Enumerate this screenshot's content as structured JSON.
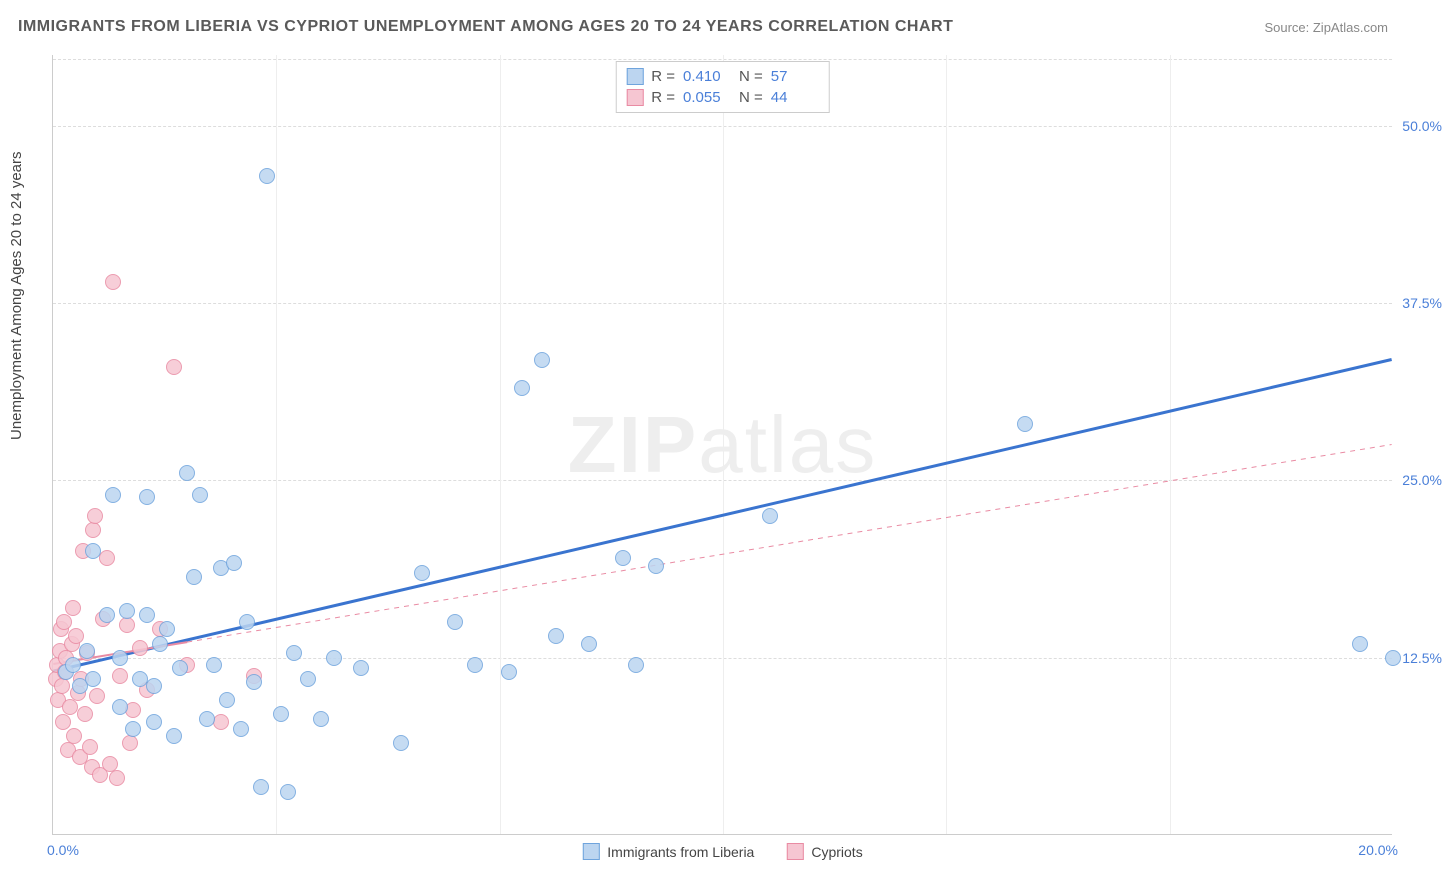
{
  "title": "IMMIGRANTS FROM LIBERIA VS CYPRIOT UNEMPLOYMENT AMONG AGES 20 TO 24 YEARS CORRELATION CHART",
  "source": "Source: ZipAtlas.com",
  "ylabel": "Unemployment Among Ages 20 to 24 years",
  "watermark_a": "ZIP",
  "watermark_b": "atlas",
  "chart": {
    "type": "scatter",
    "xlim": [
      0,
      20
    ],
    "ylim": [
      0,
      55
    ],
    "xtick_labels": [
      "0.0%",
      "20.0%"
    ],
    "ytick_positions": [
      12.5,
      25.0,
      37.5,
      50.0
    ],
    "ytick_labels": [
      "12.5%",
      "25.0%",
      "37.5%",
      "50.0%"
    ],
    "vgrid_positions": [
      3.33,
      6.67,
      10.0,
      13.33,
      16.67
    ],
    "background_color": "#ffffff",
    "grid_color": "#dddddd",
    "point_radius": 8,
    "point_stroke_width": 1,
    "marker_style": "circle",
    "aspect_w": 1340,
    "aspect_h": 780
  },
  "series": [
    {
      "name": "Immigrants from Liberia",
      "fill": "#bcd5f0",
      "stroke": "#6fa4dd",
      "line_color": "#3a74cf",
      "line_width": 3,
      "line_dash": "none",
      "R_label": "R =",
      "R": "0.410",
      "N_label": "N =",
      "N": "57",
      "trend": {
        "x1": 0,
        "y1": 11.5,
        "x2": 20,
        "y2": 33.5
      },
      "points": [
        [
          0.2,
          11.5
        ],
        [
          0.3,
          12.0
        ],
        [
          0.4,
          10.5
        ],
        [
          0.5,
          13.0
        ],
        [
          0.6,
          11.0
        ],
        [
          0.6,
          20.0
        ],
        [
          0.8,
          15.5
        ],
        [
          0.9,
          24.0
        ],
        [
          1.0,
          12.5
        ],
        [
          1.0,
          9.0
        ],
        [
          1.1,
          15.8
        ],
        [
          1.2,
          7.5
        ],
        [
          1.3,
          11.0
        ],
        [
          1.4,
          15.5
        ],
        [
          1.4,
          23.8
        ],
        [
          1.5,
          8.0
        ],
        [
          1.5,
          10.5
        ],
        [
          1.6,
          13.5
        ],
        [
          1.7,
          14.5
        ],
        [
          1.8,
          7.0
        ],
        [
          1.9,
          11.8
        ],
        [
          2.0,
          25.5
        ],
        [
          2.1,
          18.2
        ],
        [
          2.2,
          24.0
        ],
        [
          2.3,
          8.2
        ],
        [
          2.4,
          12.0
        ],
        [
          2.5,
          18.8
        ],
        [
          2.6,
          9.5
        ],
        [
          2.7,
          19.2
        ],
        [
          2.8,
          7.5
        ],
        [
          2.9,
          15.0
        ],
        [
          3.0,
          10.8
        ],
        [
          3.1,
          3.4
        ],
        [
          3.2,
          46.5
        ],
        [
          3.4,
          8.5
        ],
        [
          3.5,
          3.0
        ],
        [
          3.6,
          12.8
        ],
        [
          3.8,
          11.0
        ],
        [
          4.0,
          8.2
        ],
        [
          4.2,
          12.5
        ],
        [
          4.6,
          11.8
        ],
        [
          5.2,
          6.5
        ],
        [
          5.5,
          18.5
        ],
        [
          6.0,
          15.0
        ],
        [
          6.3,
          12.0
        ],
        [
          6.8,
          11.5
        ],
        [
          7.0,
          31.5
        ],
        [
          7.3,
          33.5
        ],
        [
          7.5,
          14.0
        ],
        [
          8.0,
          13.5
        ],
        [
          8.5,
          19.5
        ],
        [
          8.7,
          12.0
        ],
        [
          9.0,
          19.0
        ],
        [
          10.7,
          22.5
        ],
        [
          14.5,
          29.0
        ],
        [
          19.5,
          13.5
        ],
        [
          20.0,
          12.5
        ]
      ]
    },
    {
      "name": "Cypriots",
      "fill": "#f6c6d2",
      "stroke": "#e98ba3",
      "line_color": "#e98ba3",
      "line_width": 1,
      "line_dash": "5,5",
      "R_label": "R =",
      "R": "0.055",
      "N_label": "N =",
      "N": "44",
      "trend": {
        "x1": 0,
        "y1": 12.0,
        "x2": 20,
        "y2": 27.5
      },
      "trend_solid_until": 2.0,
      "points": [
        [
          0.05,
          11.0
        ],
        [
          0.06,
          12.0
        ],
        [
          0.08,
          9.5
        ],
        [
          0.1,
          13.0
        ],
        [
          0.12,
          14.5
        ],
        [
          0.14,
          10.5
        ],
        [
          0.15,
          8.0
        ],
        [
          0.16,
          15.0
        ],
        [
          0.18,
          11.5
        ],
        [
          0.2,
          12.5
        ],
        [
          0.22,
          6.0
        ],
        [
          0.25,
          9.0
        ],
        [
          0.28,
          13.5
        ],
        [
          0.3,
          16.0
        ],
        [
          0.32,
          7.0
        ],
        [
          0.35,
          14.0
        ],
        [
          0.38,
          10.0
        ],
        [
          0.4,
          5.5
        ],
        [
          0.42,
          11.0
        ],
        [
          0.45,
          20.0
        ],
        [
          0.48,
          8.5
        ],
        [
          0.5,
          12.8
        ],
        [
          0.55,
          6.2
        ],
        [
          0.58,
          4.8
        ],
        [
          0.6,
          21.5
        ],
        [
          0.62,
          22.5
        ],
        [
          0.65,
          9.8
        ],
        [
          0.7,
          4.2
        ],
        [
          0.75,
          15.2
        ],
        [
          0.8,
          19.5
        ],
        [
          0.85,
          5.0
        ],
        [
          0.9,
          39.0
        ],
        [
          0.95,
          4.0
        ],
        [
          1.0,
          11.2
        ],
        [
          1.1,
          14.8
        ],
        [
          1.15,
          6.5
        ],
        [
          1.2,
          8.8
        ],
        [
          1.3,
          13.2
        ],
        [
          1.4,
          10.2
        ],
        [
          1.6,
          14.5
        ],
        [
          1.8,
          33.0
        ],
        [
          2.0,
          12.0
        ],
        [
          2.5,
          8.0
        ],
        [
          3.0,
          11.2
        ]
      ]
    }
  ],
  "bottom_legend": {
    "series_a": "Immigrants from Liberia",
    "series_b": "Cypriots"
  }
}
